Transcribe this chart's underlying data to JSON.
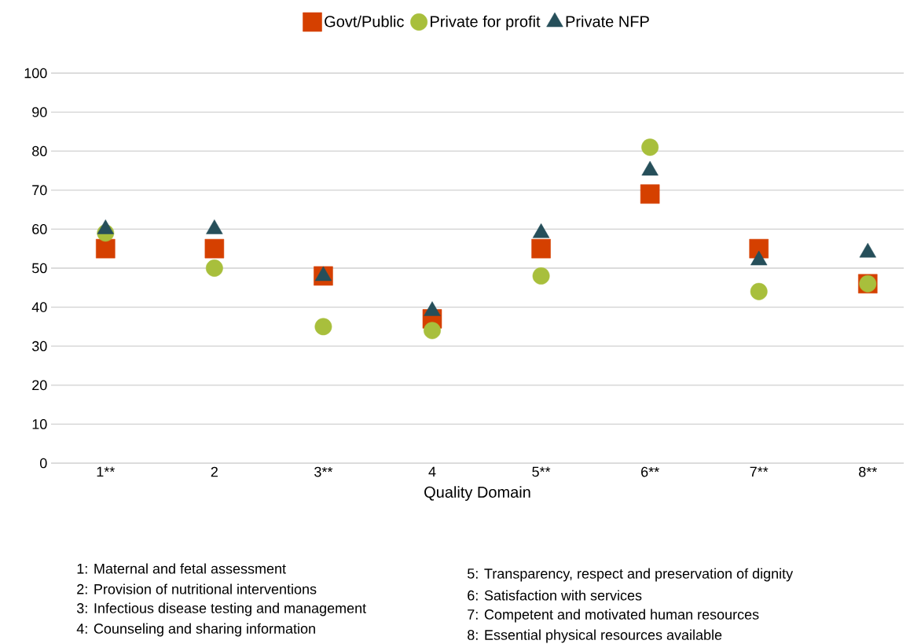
{
  "chart_data": {
    "type": "scatter",
    "xlabel": "Quality Domain",
    "categories": [
      "1**",
      "2",
      "3**",
      "4",
      "5**",
      "6**",
      "7**",
      "8**"
    ],
    "series": [
      {
        "name": "Govt/Public",
        "color": "#d54000",
        "marker": "square",
        "values": [
          55,
          55,
          48,
          37,
          55,
          69,
          55,
          46
        ]
      },
      {
        "name": "Private for profit",
        "color": "#a8bf3c",
        "marker": "circle",
        "values": [
          59,
          50,
          35,
          34,
          48,
          81,
          44,
          46
        ]
      },
      {
        "name": "Private NFP",
        "color": "#264f5a",
        "marker": "triangle",
        "values": [
          60,
          60,
          48,
          39,
          59,
          75,
          52,
          54
        ]
      }
    ],
    "ylim": [
      0,
      100
    ],
    "yticks": [
      0,
      10,
      20,
      30,
      40,
      50,
      60,
      70,
      80,
      90,
      100
    ],
    "grid": "y",
    "legend": "top",
    "annotations": [
      "1: Maternal and fetal assessment",
      "2: Provision of nutritional  interventions",
      "3: Infectious disease testing and management",
      "4: Counseling and sharing information",
      "5: Transparency, respect and preservation of dignity",
      "6: Satisfaction with services",
      "7: Competent and motivated human resources",
      "8: Essential physical resources available"
    ]
  }
}
